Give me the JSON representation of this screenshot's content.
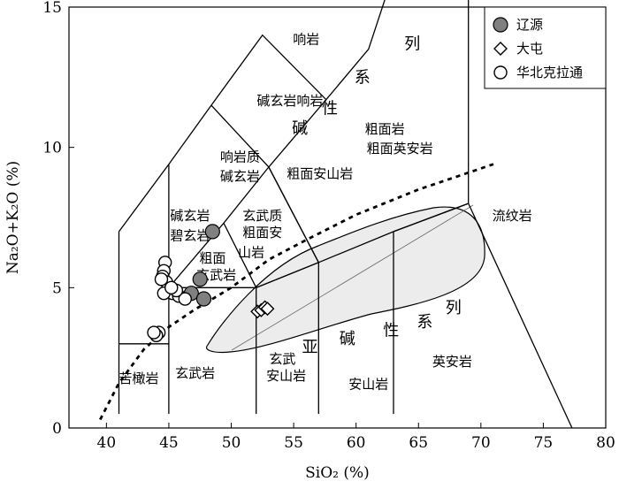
{
  "chart_data": {
    "type": "scatter",
    "xlabel": "SiO₂ (%)",
    "ylabel": "Na₂O+K₂O (%)",
    "xlim": [
      37,
      80
    ],
    "ylim": [
      0,
      15
    ],
    "x_ticks": [
      40,
      45,
      50,
      55,
      60,
      65,
      70,
      75,
      80
    ],
    "y_ticks": [
      0,
      5,
      10,
      15
    ],
    "legend_position": "top-right",
    "series": [
      {
        "name": "辽源",
        "marker": "filled-circle",
        "color": "#808080",
        "points": [
          [
            48.5,
            7.0
          ],
          [
            47.5,
            5.3
          ],
          [
            46.8,
            4.8
          ],
          [
            47.8,
            4.6
          ]
        ]
      },
      {
        "name": "大屯",
        "marker": "open-diamond",
        "color": "#000000",
        "points": [
          [
            52.1,
            4.15
          ],
          [
            52.4,
            4.2
          ],
          [
            52.7,
            4.3
          ],
          [
            52.9,
            4.25
          ]
        ]
      },
      {
        "name": "华北克拉通",
        "marker": "open-circle",
        "color": "#000000",
        "points": [
          [
            44.7,
            5.9
          ],
          [
            44.6,
            5.6
          ],
          [
            44.5,
            5.4
          ],
          [
            44.8,
            5.2
          ],
          [
            44.4,
            5.3
          ],
          [
            45.1,
            4.9
          ],
          [
            45.3,
            4.8
          ],
          [
            44.6,
            4.8
          ],
          [
            45.8,
            4.7
          ],
          [
            46.3,
            4.6
          ],
          [
            45.6,
            4.9
          ],
          [
            44.2,
            3.4
          ],
          [
            44.0,
            3.3
          ],
          [
            43.8,
            3.4
          ],
          [
            45.2,
            5.0
          ]
        ]
      }
    ],
    "fields": [
      {
        "label": "响岩"
      },
      {
        "label": "碱玄岩响岩"
      },
      {
        "label": "响岩质"
      },
      {
        "label": "碱玄岩"
      },
      {
        "label": "粗面安山岩"
      },
      {
        "label": "粗面岩"
      },
      {
        "label": "粗面英安岩"
      },
      {
        "label": "碱玄岩"
      },
      {
        "label": "碧玄岩"
      },
      {
        "label": "玄武质"
      },
      {
        "label": "粗面安"
      },
      {
        "label": "山岩"
      },
      {
        "label": "粗面"
      },
      {
        "label": "玄武岩"
      },
      {
        "label": "流纹岩"
      },
      {
        "label": "苦橄岩"
      },
      {
        "label": "玄武岩"
      },
      {
        "label": "玄武"
      },
      {
        "label": "安山岩"
      },
      {
        "label": "安山岩"
      },
      {
        "label": "英安岩"
      }
    ],
    "series_text": [
      {
        "label": "碱"
      },
      {
        "label": "性"
      },
      {
        "label": "系"
      },
      {
        "label": "列"
      },
      {
        "label": "亚"
      },
      {
        "label": "碱"
      },
      {
        "label": "性"
      },
      {
        "label": "系"
      },
      {
        "label": "列"
      }
    ]
  }
}
